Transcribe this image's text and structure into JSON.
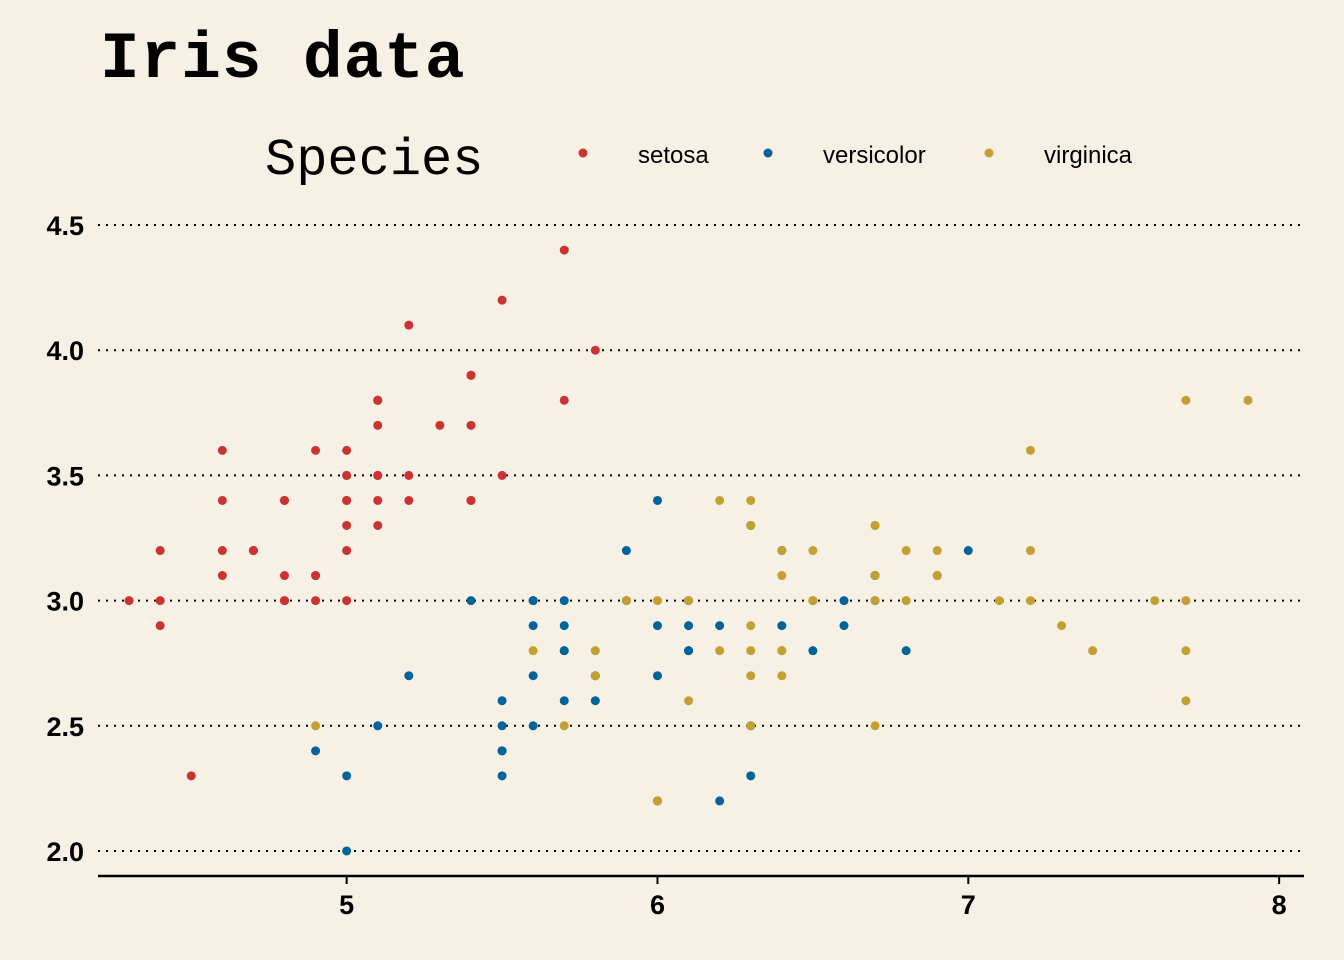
{
  "chart_data": {
    "type": "scatter",
    "title": "Iris data",
    "xlabel": "",
    "ylabel": "",
    "xlim": [
      4.2,
      8.08
    ],
    "ylim": [
      1.9,
      4.6
    ],
    "x_ticks": [
      5,
      6,
      7,
      8
    ],
    "x_tick_labels": [
      "5",
      "6",
      "7",
      "8"
    ],
    "y_ticks": [
      2.0,
      2.5,
      3.0,
      3.5,
      4.0,
      4.5
    ],
    "y_tick_labels": [
      "2.0",
      "2.5",
      "3.0",
      "3.5",
      "4.0",
      "4.5"
    ],
    "grid": {
      "horizontal": true,
      "vertical": false,
      "style": "dotted"
    },
    "legend": {
      "title": "Species",
      "placement": "top"
    },
    "series": [
      {
        "name": "setosa",
        "color": "#cb3232",
        "points": [
          [
            5.1,
            3.5
          ],
          [
            4.9,
            3.0
          ],
          [
            4.7,
            3.2
          ],
          [
            4.6,
            3.1
          ],
          [
            5.0,
            3.6
          ],
          [
            5.4,
            3.9
          ],
          [
            4.6,
            3.4
          ],
          [
            5.0,
            3.4
          ],
          [
            4.4,
            2.9
          ],
          [
            4.9,
            3.1
          ],
          [
            5.4,
            3.7
          ],
          [
            4.8,
            3.4
          ],
          [
            4.8,
            3.0
          ],
          [
            4.3,
            3.0
          ],
          [
            5.8,
            4.0
          ],
          [
            5.7,
            4.4
          ],
          [
            5.4,
            3.9
          ],
          [
            5.1,
            3.5
          ],
          [
            5.7,
            3.8
          ],
          [
            5.1,
            3.8
          ],
          [
            5.4,
            3.4
          ],
          [
            5.1,
            3.7
          ],
          [
            4.6,
            3.6
          ],
          [
            5.1,
            3.3
          ],
          [
            4.8,
            3.4
          ],
          [
            5.0,
            3.0
          ],
          [
            5.0,
            3.4
          ],
          [
            5.2,
            3.5
          ],
          [
            5.2,
            3.4
          ],
          [
            4.7,
            3.2
          ],
          [
            4.8,
            3.1
          ],
          [
            5.4,
            3.4
          ],
          [
            5.2,
            4.1
          ],
          [
            5.5,
            4.2
          ],
          [
            4.9,
            3.1
          ],
          [
            5.0,
            3.2
          ],
          [
            5.5,
            3.5
          ],
          [
            4.9,
            3.6
          ],
          [
            4.4,
            3.0
          ],
          [
            5.1,
            3.4
          ],
          [
            5.0,
            3.5
          ],
          [
            4.5,
            2.3
          ],
          [
            4.4,
            3.2
          ],
          [
            5.0,
            3.5
          ],
          [
            5.1,
            3.8
          ],
          [
            4.8,
            3.0
          ],
          [
            5.1,
            3.8
          ],
          [
            4.6,
            3.2
          ],
          [
            5.3,
            3.7
          ],
          [
            5.0,
            3.3
          ]
        ]
      },
      {
        "name": "versicolor",
        "color": "#00649b",
        "points": [
          [
            7.0,
            3.2
          ],
          [
            6.4,
            3.2
          ],
          [
            6.9,
            3.1
          ],
          [
            5.5,
            2.3
          ],
          [
            6.5,
            2.8
          ],
          [
            5.7,
            2.8
          ],
          [
            6.3,
            3.3
          ],
          [
            4.9,
            2.4
          ],
          [
            6.6,
            2.9
          ],
          [
            5.2,
            2.7
          ],
          [
            5.0,
            2.0
          ],
          [
            5.9,
            3.0
          ],
          [
            6.0,
            2.2
          ],
          [
            6.1,
            2.9
          ],
          [
            5.6,
            2.9
          ],
          [
            6.7,
            3.1
          ],
          [
            5.6,
            3.0
          ],
          [
            5.8,
            2.7
          ],
          [
            6.2,
            2.2
          ],
          [
            5.6,
            2.5
          ],
          [
            5.9,
            3.2
          ],
          [
            6.1,
            2.8
          ],
          [
            6.3,
            2.5
          ],
          [
            6.1,
            2.8
          ],
          [
            6.4,
            2.9
          ],
          [
            6.6,
            3.0
          ],
          [
            6.8,
            2.8
          ],
          [
            6.7,
            3.0
          ],
          [
            6.0,
            2.9
          ],
          [
            5.7,
            2.6
          ],
          [
            5.5,
            2.4
          ],
          [
            5.5,
            2.4
          ],
          [
            5.8,
            2.7
          ],
          [
            6.0,
            2.7
          ],
          [
            5.4,
            3.0
          ],
          [
            6.0,
            3.4
          ],
          [
            6.7,
            3.1
          ],
          [
            6.3,
            2.3
          ],
          [
            5.6,
            3.0
          ],
          [
            5.5,
            2.5
          ],
          [
            5.5,
            2.6
          ],
          [
            6.1,
            3.0
          ],
          [
            5.8,
            2.6
          ],
          [
            5.0,
            2.3
          ],
          [
            5.6,
            2.7
          ],
          [
            5.7,
            3.0
          ],
          [
            5.7,
            2.9
          ],
          [
            6.2,
            2.9
          ],
          [
            5.1,
            2.5
          ],
          [
            5.7,
            2.8
          ]
        ]
      },
      {
        "name": "virginica",
        "color": "#c3a032",
        "points": [
          [
            6.3,
            3.3
          ],
          [
            5.8,
            2.7
          ],
          [
            7.1,
            3.0
          ],
          [
            6.3,
            2.9
          ],
          [
            6.5,
            3.0
          ],
          [
            7.6,
            3.0
          ],
          [
            4.9,
            2.5
          ],
          [
            7.3,
            2.9
          ],
          [
            6.7,
            2.5
          ],
          [
            7.2,
            3.6
          ],
          [
            6.5,
            3.2
          ],
          [
            6.4,
            2.7
          ],
          [
            6.8,
            3.0
          ],
          [
            5.7,
            2.5
          ],
          [
            5.8,
            2.8
          ],
          [
            6.4,
            3.2
          ],
          [
            6.5,
            3.0
          ],
          [
            7.7,
            3.8
          ],
          [
            7.7,
            2.6
          ],
          [
            6.0,
            2.2
          ],
          [
            6.9,
            3.2
          ],
          [
            5.6,
            2.8
          ],
          [
            7.7,
            2.8
          ],
          [
            6.3,
            2.7
          ],
          [
            6.7,
            3.3
          ],
          [
            7.2,
            3.2
          ],
          [
            6.2,
            2.8
          ],
          [
            6.1,
            3.0
          ],
          [
            6.4,
            2.8
          ],
          [
            7.2,
            3.0
          ],
          [
            7.4,
            2.8
          ],
          [
            7.9,
            3.8
          ],
          [
            6.4,
            2.8
          ],
          [
            6.3,
            2.8
          ],
          [
            6.1,
            2.6
          ],
          [
            7.7,
            3.0
          ],
          [
            6.3,
            3.4
          ],
          [
            6.4,
            3.1
          ],
          [
            6.0,
            3.0
          ],
          [
            6.9,
            3.1
          ],
          [
            6.7,
            3.1
          ],
          [
            6.9,
            3.1
          ],
          [
            5.8,
            2.7
          ],
          [
            6.8,
            3.2
          ],
          [
            6.7,
            3.3
          ],
          [
            6.7,
            3.0
          ],
          [
            6.3,
            2.5
          ],
          [
            6.5,
            3.0
          ],
          [
            6.2,
            3.4
          ],
          [
            5.9,
            3.0
          ]
        ]
      }
    ]
  }
}
